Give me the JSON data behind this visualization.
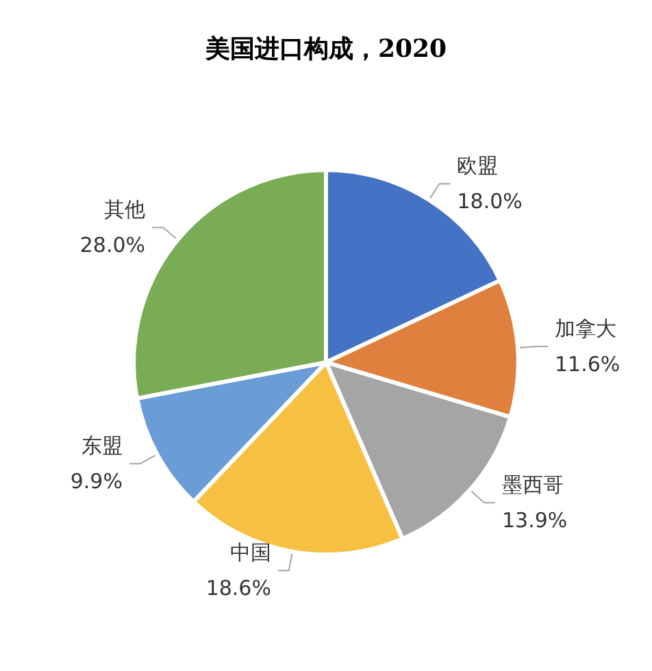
{
  "chart_data": {
    "type": "pie",
    "title": "美国进口构成，2020",
    "categories": [
      "欧盟",
      "加拿大",
      "墨西哥",
      "中国",
      "东盟",
      "其他"
    ],
    "values": [
      18.0,
      11.6,
      13.9,
      18.6,
      9.9,
      28.0
    ],
    "value_labels": [
      "18.0%",
      "11.6%",
      "13.9%",
      "18.6%",
      "9.9%",
      "28.0%"
    ],
    "colors": [
      "#4472c4",
      "#e0803f",
      "#a5a5a5",
      "#f6c142",
      "#6a9dd6",
      "#7aab55"
    ],
    "legend": false
  }
}
